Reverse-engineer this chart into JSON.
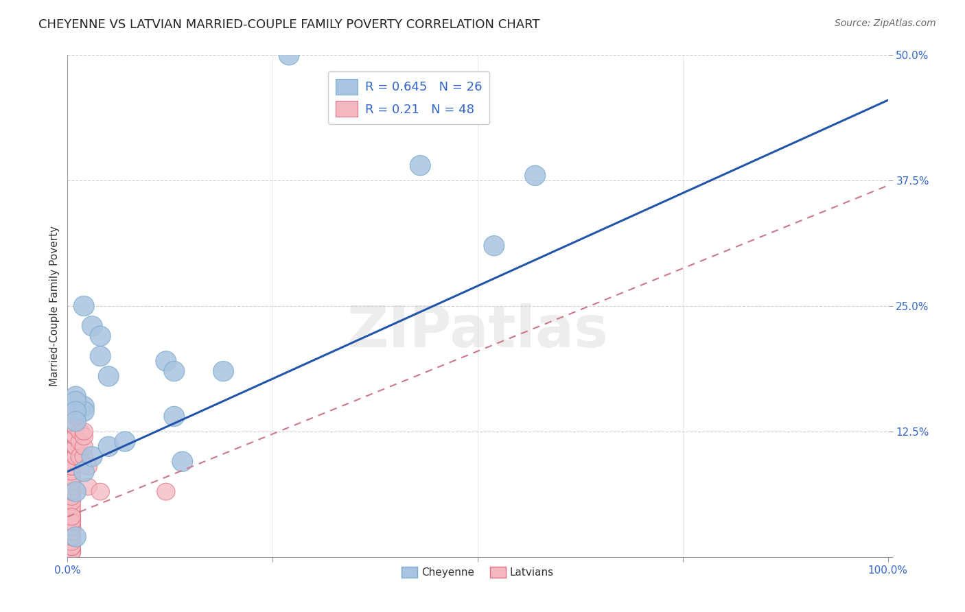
{
  "title": "CHEYENNE VS LATVIAN MARRIED-COUPLE FAMILY POVERTY CORRELATION CHART",
  "source": "Source: ZipAtlas.com",
  "ylabel": "Married-Couple Family Poverty",
  "cheyenne_R": 0.645,
  "cheyenne_N": 26,
  "latvian_R": 0.21,
  "latvian_N": 48,
  "cheyenne_color": "#a8c4e0",
  "cheyenne_edge": "#7aaacf",
  "latvian_color": "#f4b8c1",
  "latvian_edge": "#e07080",
  "blue_line_color": "#2255aa",
  "pink_line_color": "#cc7788",
  "watermark": "ZIPatlas",
  "watermark_color": "#cccccc",
  "xlim": [
    0.0,
    1.0
  ],
  "ylim": [
    0.0,
    0.5
  ],
  "cheyenne_x": [
    0.27,
    0.02,
    0.03,
    0.04,
    0.04,
    0.05,
    0.12,
    0.13,
    0.02,
    0.02,
    0.01,
    0.01,
    0.01,
    0.01,
    0.19,
    0.43,
    0.57,
    0.52,
    0.13,
    0.14,
    0.02,
    0.01,
    0.01,
    0.03,
    0.05,
    0.07
  ],
  "cheyenne_y": [
    0.5,
    0.25,
    0.23,
    0.22,
    0.2,
    0.18,
    0.195,
    0.185,
    0.15,
    0.145,
    0.16,
    0.155,
    0.145,
    0.135,
    0.185,
    0.39,
    0.38,
    0.31,
    0.14,
    0.095,
    0.085,
    0.065,
    0.02,
    0.1,
    0.11,
    0.115
  ],
  "latvian_x": [
    0.005,
    0.005,
    0.005,
    0.005,
    0.005,
    0.005,
    0.005,
    0.005,
    0.005,
    0.005,
    0.005,
    0.005,
    0.005,
    0.005,
    0.005,
    0.005,
    0.005,
    0.005,
    0.005,
    0.005,
    0.005,
    0.005,
    0.005,
    0.005,
    0.005,
    0.005,
    0.005,
    0.005,
    0.005,
    0.01,
    0.01,
    0.01,
    0.01,
    0.01,
    0.01,
    0.01,
    0.01,
    0.015,
    0.015,
    0.015,
    0.02,
    0.02,
    0.02,
    0.02,
    0.025,
    0.025,
    0.04,
    0.12
  ],
  "latvian_y": [
    0.005,
    0.005,
    0.005,
    0.01,
    0.01,
    0.015,
    0.02,
    0.02,
    0.025,
    0.03,
    0.03,
    0.035,
    0.04,
    0.04,
    0.045,
    0.05,
    0.055,
    0.06,
    0.065,
    0.07,
    0.075,
    0.08,
    0.085,
    0.09,
    0.09,
    0.025,
    0.03,
    0.035,
    0.04,
    0.1,
    0.1,
    0.11,
    0.11,
    0.12,
    0.12,
    0.13,
    0.14,
    0.1,
    0.115,
    0.125,
    0.1,
    0.11,
    0.12,
    0.125,
    0.09,
    0.07,
    0.065,
    0.065
  ],
  "cheyenne_line_x": [
    0.0,
    1.0
  ],
  "cheyenne_line_y": [
    0.085,
    0.455
  ],
  "latvian_line_x": [
    0.0,
    1.0
  ],
  "latvian_line_y": [
    0.04,
    0.37
  ],
  "title_fontsize": 13,
  "axis_label_fontsize": 11,
  "tick_fontsize": 11,
  "legend_fontsize": 13
}
